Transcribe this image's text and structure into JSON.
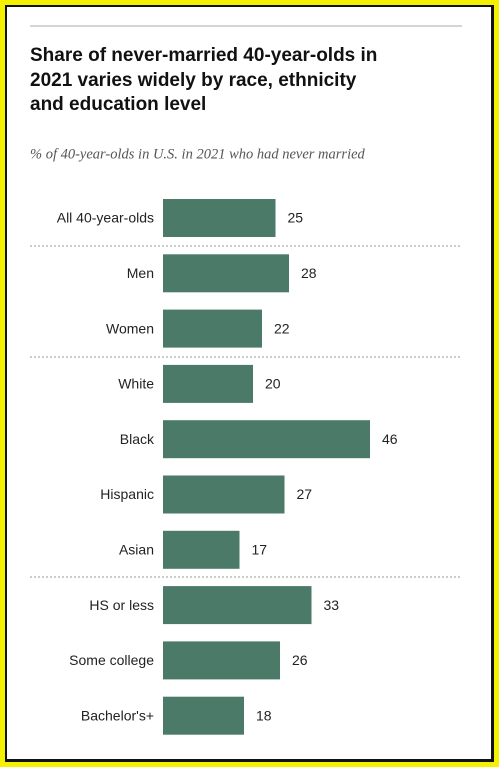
{
  "chart_data": {
    "type": "bar",
    "orientation": "horizontal",
    "title": [
      "Share of never-married 40-year-olds in",
      "2021 varies widely by race, ethnicity",
      "and education level"
    ],
    "subtitle": "% of 40-year-olds in U.S. in 2021 who had never married",
    "categories": [
      "All 40-year-olds",
      "Men",
      "Women",
      "White",
      "Black",
      "Hispanic",
      "Asian",
      "HS or less",
      "Some college",
      "Bachelor's+"
    ],
    "values": [
      25,
      28,
      22,
      20,
      46,
      27,
      17,
      33,
      26,
      18
    ],
    "color": "#4b7a68"
  }
}
